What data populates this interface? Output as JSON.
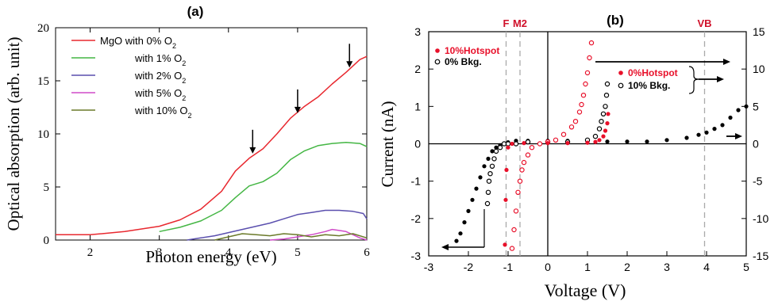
{
  "chart_data": [
    {
      "panel_label": "(a)",
      "type": "line",
      "xlabel": "Photon energy (eV)",
      "ylabel": "Optical absorption (arb. unit)",
      "xlim": [
        1.5,
        6
      ],
      "ylim": [
        0,
        20
      ],
      "xticks": [
        "2",
        "3",
        "4",
        "5",
        "6"
      ],
      "yticks": [
        "0",
        "5",
        "10",
        "15",
        "20"
      ],
      "legend_position": "top-left",
      "series": [
        {
          "name": "MgO with 0% O",
          "subscript": "2",
          "color": "#e8282f",
          "x": [
            1.5,
            2.0,
            2.5,
            3.0,
            3.3,
            3.6,
            3.9,
            4.1,
            4.3,
            4.5,
            4.7,
            4.9,
            5.1,
            5.3,
            5.5,
            5.7,
            5.9,
            6.0
          ],
          "y": [
            0.5,
            0.5,
            0.8,
            1.3,
            1.9,
            2.9,
            4.6,
            6.5,
            7.7,
            8.6,
            10.0,
            11.5,
            12.6,
            13.5,
            14.7,
            15.8,
            17.0,
            17.3
          ]
        },
        {
          "name": "with 1% O",
          "subscript": "2",
          "color": "#44b644",
          "x": [
            3.0,
            3.3,
            3.6,
            3.9,
            4.1,
            4.3,
            4.5,
            4.7,
            4.9,
            5.1,
            5.3,
            5.5,
            5.7,
            5.9,
            6.0
          ],
          "y": [
            0.8,
            1.2,
            1.8,
            2.8,
            4.0,
            5.1,
            5.5,
            6.3,
            7.6,
            8.4,
            8.9,
            9.1,
            9.2,
            9.1,
            8.8
          ]
        },
        {
          "name": "with 2% O",
          "subscript": "2",
          "color": "#5a4fae",
          "x": [
            3.4,
            3.6,
            3.8,
            4.0,
            4.2,
            4.4,
            4.6,
            4.8,
            5.0,
            5.2,
            5.4,
            5.6,
            5.8,
            5.95,
            6.0
          ],
          "y": [
            0.0,
            0.2,
            0.4,
            0.7,
            1.0,
            1.3,
            1.6,
            2.0,
            2.4,
            2.6,
            2.8,
            2.8,
            2.7,
            2.5,
            2.0
          ]
        },
        {
          "name": "with 5% O",
          "subscript": "2",
          "color": "#d04cc8",
          "x": [
            4.6,
            4.8,
            5.0,
            5.2,
            5.4,
            5.5,
            5.6,
            5.7,
            5.8,
            5.9,
            6.0
          ],
          "y": [
            0.0,
            0.1,
            0.3,
            0.5,
            0.8,
            1.0,
            0.9,
            0.8,
            0.5,
            0.2,
            0.0
          ]
        },
        {
          "name": "with 10% O",
          "subscript": "2",
          "color": "#6b7a2a",
          "x": [
            3.8,
            4.0,
            4.2,
            4.4,
            4.6,
            4.8,
            5.0,
            5.2,
            5.4,
            5.6,
            5.8,
            6.0
          ],
          "y": [
            0.0,
            0.3,
            0.6,
            0.5,
            0.4,
            0.6,
            0.5,
            0.3,
            0.5,
            0.4,
            0.6,
            0.2
          ]
        }
      ],
      "annotations": [
        {
          "type": "down-arrow",
          "x": 4.35,
          "y": 7.7
        },
        {
          "type": "down-arrow",
          "x": 5.0,
          "y": 11.5
        },
        {
          "type": "down-arrow",
          "x": 5.75,
          "y": 15.8
        }
      ]
    },
    {
      "panel_label": "(b)",
      "type": "scatter",
      "xlabel": "Voltage (V)",
      "ylabel": "Current (nA)",
      "xlim": [
        -3,
        5
      ],
      "ylim": [
        -3,
        3
      ],
      "y2lim": [
        -15,
        15
      ],
      "xticks": [
        "-3",
        "-2",
        "-1",
        "0",
        "1",
        "2",
        "3",
        "4",
        "5"
      ],
      "yticks": [
        "-3",
        "-2",
        "-1",
        "0",
        "1",
        "2",
        "3"
      ],
      "y2ticks": [
        "-15",
        "-10",
        "-5",
        "0",
        "5",
        "10",
        "15"
      ],
      "reference_lines": [
        {
          "label": "F",
          "x": -1.05,
          "color": "#d0102a"
        },
        {
          "label": "M2",
          "x": -0.7,
          "color": "#d0102a"
        },
        {
          "label": "VB",
          "x": 3.95,
          "color": "#d0102a"
        }
      ],
      "legend_left": [
        {
          "label": "10%Hotspot",
          "marker": "filled",
          "color": "#e8102a",
          "text_color": "#e8102a"
        },
        {
          "label": "0% Bkg.",
          "marker": "open",
          "color": "#000000",
          "text_color": "#000000"
        }
      ],
      "legend_right": [
        {
          "label": "0%Hotspot",
          "marker": "filled",
          "color": "#e8102a",
          "text_color": "#e8102a"
        },
        {
          "label": "10% Bkg.",
          "marker": "open",
          "color": "#000000",
          "text_color": "#000000"
        }
      ],
      "series": [
        {
          "marker": "filled",
          "color": "#000000",
          "axis": "right",
          "x": [
            -2.3,
            -2.2,
            -2.1,
            -2.0,
            -1.9,
            -1.8,
            -1.7,
            -1.6,
            -1.5,
            -1.4,
            -1.3,
            -1.2,
            -1.1,
            -1.0,
            -0.8,
            -0.5,
            0,
            0.5,
            1.0,
            1.5,
            2.0,
            2.5,
            3.0,
            3.5,
            3.8,
            4.0,
            4.2,
            4.4,
            4.6,
            4.8,
            5.0
          ],
          "y": [
            -13.0,
            -12.0,
            -10.5,
            -9.0,
            -7.5,
            -6.0,
            -4.5,
            -3.0,
            -2.0,
            -1.0,
            -0.5,
            -0.2,
            0.0,
            0.2,
            0.4,
            0.4,
            0.4,
            0.4,
            0.3,
            0.3,
            0.3,
            0.3,
            0.5,
            0.8,
            1.2,
            1.5,
            2.0,
            2.5,
            3.5,
            4.5,
            5.0
          ]
        },
        {
          "marker": "open",
          "color": "#000000",
          "axis": "left",
          "x": [
            -1.52,
            -1.5,
            -1.48,
            -1.45,
            -1.4,
            -1.35,
            -1.3,
            -1.2,
            -1.1,
            -1.0,
            -0.8,
            -0.5,
            0,
            0.5,
            1.0,
            1.2,
            1.3,
            1.35,
            1.4,
            1.45,
            1.48,
            1.5
          ],
          "y": [
            -1.6,
            -1.3,
            -1.0,
            -0.8,
            -0.6,
            -0.4,
            -0.2,
            -0.1,
            0.0,
            0.0,
            0.0,
            0.05,
            0.05,
            0.05,
            0.1,
            0.2,
            0.4,
            0.6,
            0.8,
            1.0,
            1.3,
            1.6
          ]
        },
        {
          "marker": "open",
          "color": "#e8102a",
          "axis": "left",
          "x": [
            -0.9,
            -0.85,
            -0.8,
            -0.75,
            -0.7,
            -0.65,
            -0.6,
            -0.5,
            -0.4,
            -0.2,
            0,
            0.2,
            0.4,
            0.6,
            0.7,
            0.8,
            0.85,
            0.9,
            0.95,
            1.0,
            1.05,
            1.1
          ],
          "y": [
            -2.8,
            -2.3,
            -1.8,
            -1.3,
            -1.0,
            -0.7,
            -0.5,
            -0.3,
            -0.1,
            0.0,
            0.05,
            0.1,
            0.25,
            0.45,
            0.6,
            0.85,
            1.05,
            1.3,
            1.6,
            1.9,
            2.3,
            2.7
          ]
        },
        {
          "marker": "filled",
          "color": "#e8102a",
          "axis": "left",
          "x": [
            -1.08,
            -1.06,
            -1.04,
            -1.0,
            -0.9,
            -0.6,
            0,
            0.5,
            1.0,
            1.2,
            1.3,
            1.4,
            1.45,
            1.5,
            1.52
          ],
          "y": [
            -2.7,
            -1.5,
            -0.7,
            -0.1,
            0.0,
            0.02,
            0.02,
            0.02,
            0.03,
            0.05,
            0.1,
            0.2,
            0.35,
            0.55,
            0.8
          ]
        }
      ]
    }
  ]
}
